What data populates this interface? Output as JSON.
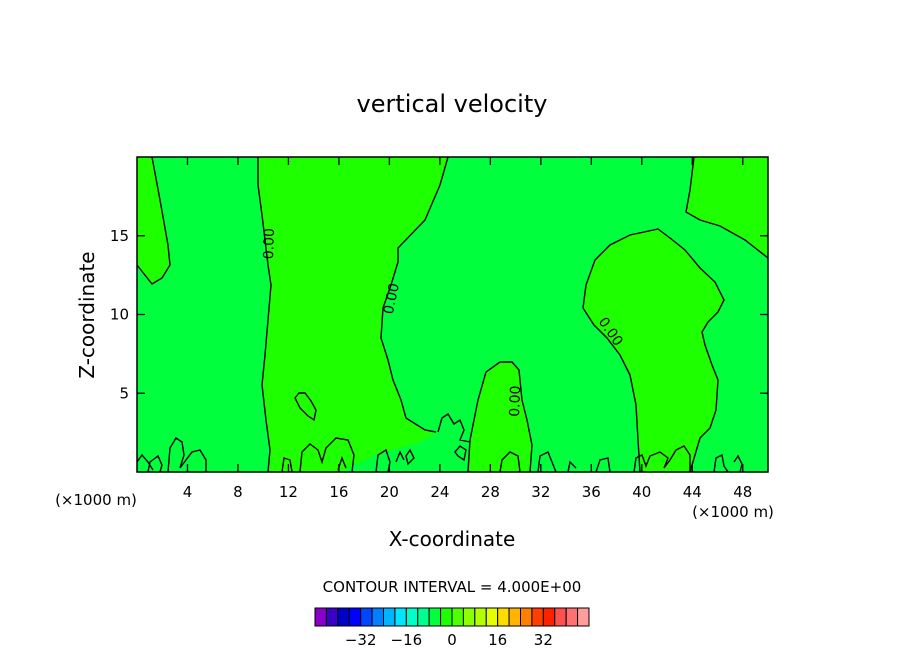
{
  "chart_data": {
    "type": "contour",
    "title": "vertical velocity",
    "xlabel": "X-coordinate",
    "ylabel": "Z-coordinate",
    "x_unit_label": "(×1000 m)",
    "z_unit_label": "(×1000 m)",
    "xlim": [
      0,
      50
    ],
    "ylim": [
      0,
      20
    ],
    "x_ticks": [
      4,
      8,
      12,
      16,
      20,
      24,
      28,
      32,
      36,
      40,
      44,
      48
    ],
    "y_ticks": [
      5,
      10,
      15
    ],
    "contour_labels": [
      {
        "text": "0.00",
        "x": 10.5,
        "z": 14.5,
        "angle": -88
      },
      {
        "text": "0.00",
        "x": 20.2,
        "z": 11.0,
        "angle": -78
      },
      {
        "text": "0.00",
        "x": 30.0,
        "z": 4.5,
        "angle": -88
      },
      {
        "text": "0.00",
        "x": 37.5,
        "z": 8.9,
        "angle": 55
      }
    ],
    "contour_interval_text": "CONTOUR INTERVAL = 4.000E+00",
    "colorbar": {
      "colors": [
        "#8a00c8",
        "#3a00c8",
        "#0000c8",
        "#0000ff",
        "#0045ff",
        "#0080ff",
        "#00b4ff",
        "#00e6ff",
        "#00ffc8",
        "#00ff8c",
        "#00ff3c",
        "#1eff00",
        "#50ff00",
        "#8cff00",
        "#b4ff00",
        "#e6ff00",
        "#ffdc00",
        "#ffb400",
        "#ff8000",
        "#ff4000",
        "#ff2000",
        "#ff5050",
        "#ff7070",
        "#ff9c9c"
      ],
      "tick_labels": [
        "−32",
        "−16",
        "0",
        "16",
        "32"
      ],
      "tick_values": [
        -32,
        -16,
        0,
        16,
        32
      ],
      "min": -48,
      "max": 48
    },
    "colors": {
      "negative_region": "#00ff3c",
      "positive_region": "#1eff00",
      "contour_line": "#000000"
    }
  }
}
